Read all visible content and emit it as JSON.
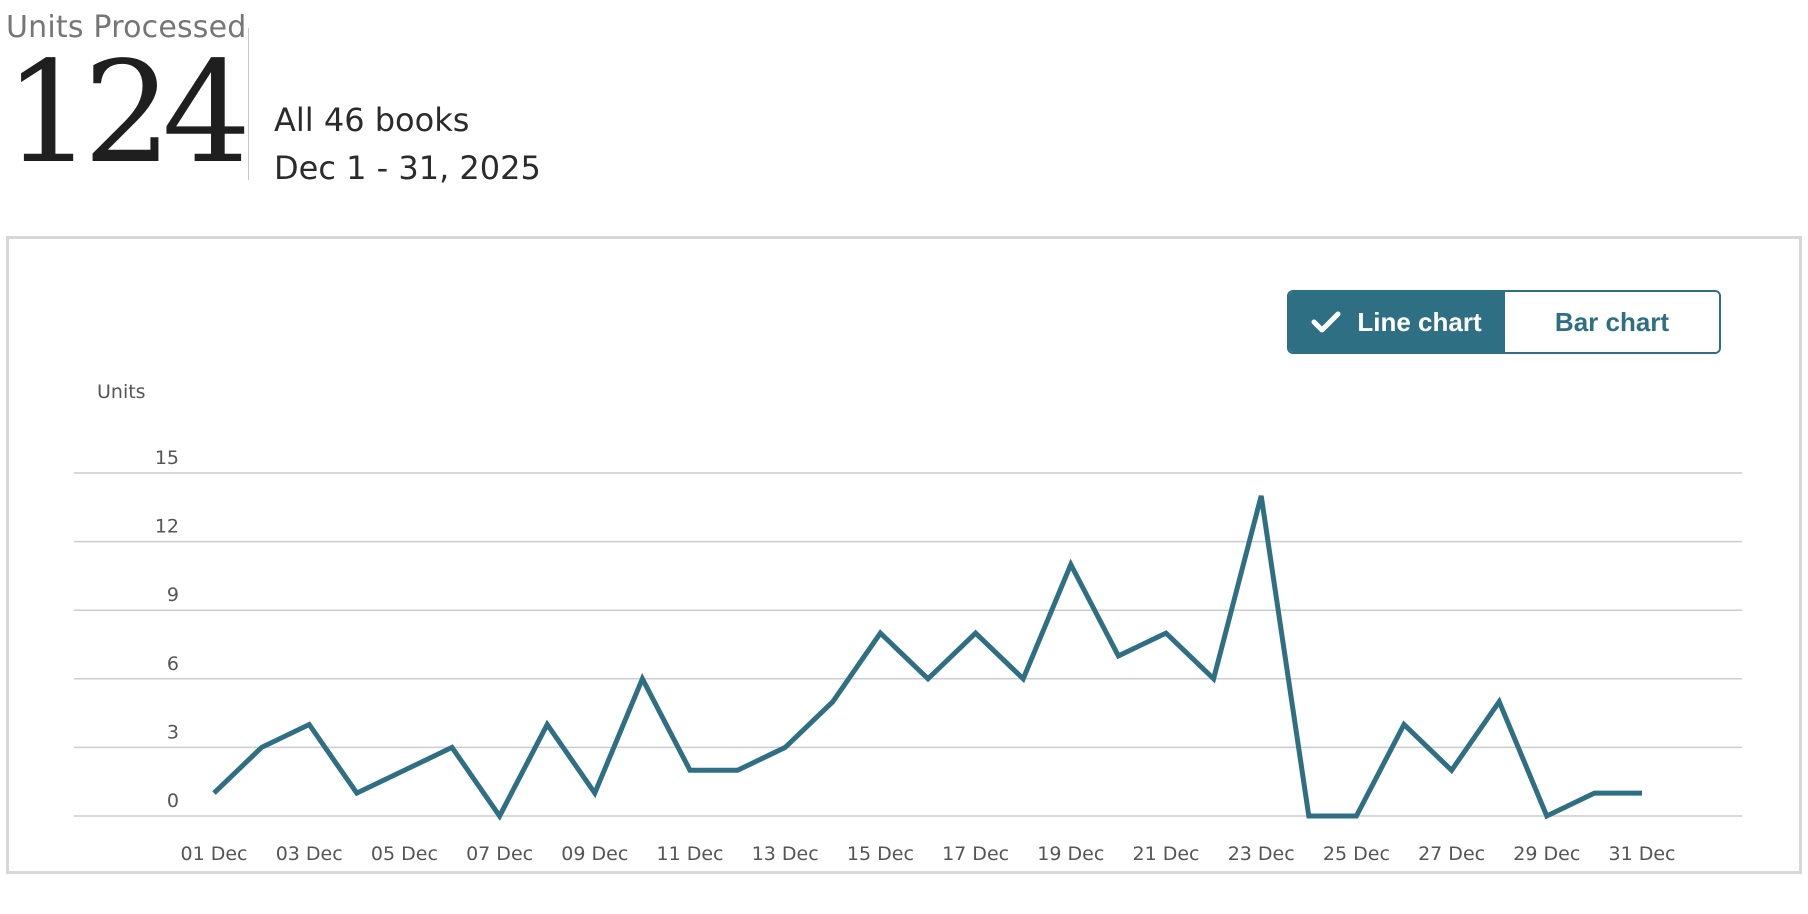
{
  "header": {
    "metric_label": "Units Processed",
    "metric_value": "124",
    "scope_books": "All 46 books",
    "scope_dates": "Dec 1 - 31, 2025"
  },
  "toggle": {
    "line_label": "Line chart",
    "bar_label": "Bar chart",
    "selected": "line",
    "active_icon": "check-icon"
  },
  "colors": {
    "accent": "#2f6f84",
    "grid": "#cccccc",
    "axis_text": "#555555"
  },
  "chart_data": {
    "type": "line",
    "ylabel": "Units",
    "xlabel": "",
    "ylim": [
      0,
      15
    ],
    "yticks": [
      0,
      3,
      6,
      9,
      12,
      15
    ],
    "grid": true,
    "x": [
      "01 Dec",
      "02 Dec",
      "03 Dec",
      "04 Dec",
      "05 Dec",
      "06 Dec",
      "07 Dec",
      "08 Dec",
      "09 Dec",
      "10 Dec",
      "11 Dec",
      "12 Dec",
      "13 Dec",
      "14 Dec",
      "15 Dec",
      "16 Dec",
      "17 Dec",
      "18 Dec",
      "19 Dec",
      "20 Dec",
      "21 Dec",
      "22 Dec",
      "23 Dec",
      "24 Dec",
      "25 Dec",
      "26 Dec",
      "27 Dec",
      "28 Dec",
      "29 Dec",
      "30 Dec",
      "31 Dec"
    ],
    "xtick_labels": [
      "01 Dec",
      "03 Dec",
      "05 Dec",
      "07 Dec",
      "09 Dec",
      "11 Dec",
      "13 Dec",
      "15 Dec",
      "17 Dec",
      "19 Dec",
      "21 Dec",
      "23 Dec",
      "25 Dec",
      "27 Dec",
      "29 Dec",
      "31 Dec"
    ],
    "series": [
      {
        "values": [
          1,
          3,
          4,
          1,
          2,
          3,
          0,
          4,
          1,
          6,
          2,
          2,
          3,
          5,
          8,
          6,
          8,
          6,
          11,
          7,
          8,
          6,
          14,
          0,
          0,
          4,
          2,
          5,
          0,
          1,
          1
        ],
        "color": "#2f6f84"
      }
    ]
  }
}
